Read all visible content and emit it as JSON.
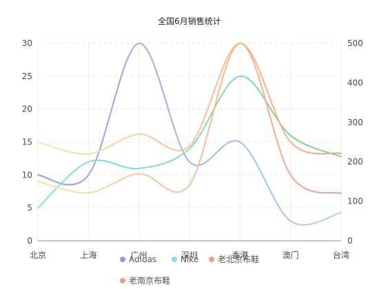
{
  "chart_data": {
    "type": "line",
    "title": "全国6月销售统计",
    "categories": [
      "北京",
      "上海",
      "广州",
      "深圳",
      "香港",
      "澳门",
      "台湾"
    ],
    "y_left": {
      "min": 0,
      "max": 30,
      "ticks": [
        0,
        5,
        10,
        15,
        20,
        25,
        30
      ]
    },
    "y_right": {
      "min": 0,
      "max": 500,
      "ticks": [
        0,
        100,
        200,
        300,
        400,
        500
      ]
    },
    "grid": true,
    "legend_position": "bottom",
    "series": [
      {
        "name": "Adidas",
        "axis": "left",
        "colors": [
          "#a78ce8",
          "#9fd8f5"
        ],
        "values": [
          10,
          10,
          30,
          12,
          15,
          3,
          4.3
        ]
      },
      {
        "name": "Nike",
        "axis": "left",
        "colors": [
          "#7fe3ea",
          "#72db7c"
        ],
        "values": [
          5,
          12,
          11,
          14,
          25,
          16,
          12.8
        ]
      },
      {
        "name": "老北京布鞋",
        "axis": "left",
        "colors": [
          "#fde6a8",
          "#f7a07a"
        ],
        "values": [
          15,
          13.2,
          16.2,
          14.4,
          30,
          15,
          13.3
        ]
      },
      {
        "name": "老南京布鞋",
        "axis": "left",
        "colors": [
          "#fbe2a6",
          "#f49a86"
        ],
        "values": [
          9,
          7.3,
          10.2,
          8.5,
          30,
          10,
          7.2
        ]
      }
    ],
    "legend_colors": [
      "#a78ce8",
      "#7fe3ea",
      "#f49a86",
      "#f49a86"
    ]
  }
}
